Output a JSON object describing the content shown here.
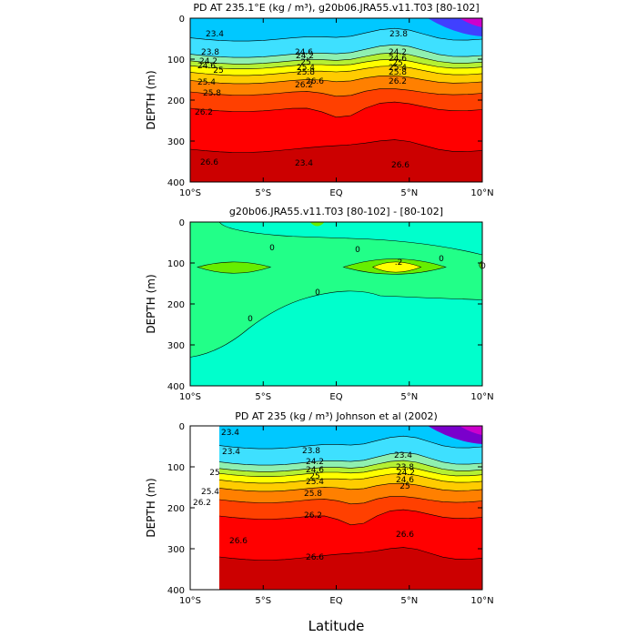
{
  "chart_data": [
    {
      "type": "contour",
      "title": "PD AT 235.1°E (kg / m³), g20b06.JRA55.v11.T03 [80-102]",
      "ylabel": "DEPTH (m)",
      "xlabel": "",
      "x_ticks": [
        "10°S",
        "5°S",
        "EQ",
        "5°N",
        "10°N"
      ],
      "y_ticks": [
        "0",
        "100",
        "200",
        "300",
        "400"
      ],
      "xlim": [
        -10,
        10
      ],
      "ylim": [
        0,
        400
      ],
      "color_stops": [
        "#00c8ff",
        "#3ee0ff",
        "#8ff0b0",
        "#b5f033",
        "#ffff00",
        "#ffcc00",
        "#ff8000",
        "#ff4000",
        "#ff0000",
        "#cc0000"
      ],
      "contour_labels": [
        "23.4",
        "23.8",
        "24.2",
        "24.6",
        "25",
        "25.4",
        "25.8",
        "26.2",
        "26.6",
        "24.6",
        "24.2",
        "25",
        "25.4",
        "25.8",
        "26.2",
        "26.6",
        "23.4",
        "23.8",
        "24.2",
        "24.6",
        "25",
        "25.4",
        "25.8",
        "26.2",
        "26.6"
      ]
    },
    {
      "type": "contour",
      "title": "g20b06.JRA55.v11.T03 [80-102] - [80-102]",
      "ylabel": "DEPTH (m)",
      "xlabel": "",
      "x_ticks": [
        "10°S",
        "5°S",
        "EQ",
        "5°N",
        "10°N"
      ],
      "y_ticks": [
        "0",
        "100",
        "200",
        "300",
        "400"
      ],
      "xlim": [
        -10,
        10
      ],
      "ylim": [
        0,
        400
      ],
      "color_stops": [
        "#00ffcc",
        "#22ff88",
        "#66ee00",
        "#ffff00"
      ],
      "contour_labels": [
        "0",
        "0",
        "0",
        "0",
        "0",
        ".2",
        "0"
      ]
    },
    {
      "type": "contour",
      "title": "PD AT 235 (kg / m³) Johnson et al (2002)",
      "ylabel": "DEPTH (m)",
      "xlabel": "Latitude",
      "x_ticks": [
        "10°S",
        "5°S",
        "EQ",
        "5°N",
        "10°N"
      ],
      "y_ticks": [
        "0",
        "100",
        "200",
        "300",
        "400"
      ],
      "xlim": [
        -10,
        10
      ],
      "ylim": [
        0,
        400
      ],
      "color_stops": [
        "#00c8ff",
        "#3ee0ff",
        "#8ff0b0",
        "#b5f033",
        "#ffff00",
        "#ffcc00",
        "#ff8000",
        "#ff4000",
        "#ff0000",
        "#cc0000"
      ],
      "contour_labels": [
        "23.4",
        "25",
        "25.4",
        "26.2",
        "23.4",
        "23.8",
        "24.2",
        "24.6",
        "25",
        "25.4",
        "25.8",
        "26.2",
        "26.6",
        "23.4",
        "23.8",
        "24.2",
        "24.6",
        "25",
        "26.6",
        "26.6"
      ]
    }
  ]
}
